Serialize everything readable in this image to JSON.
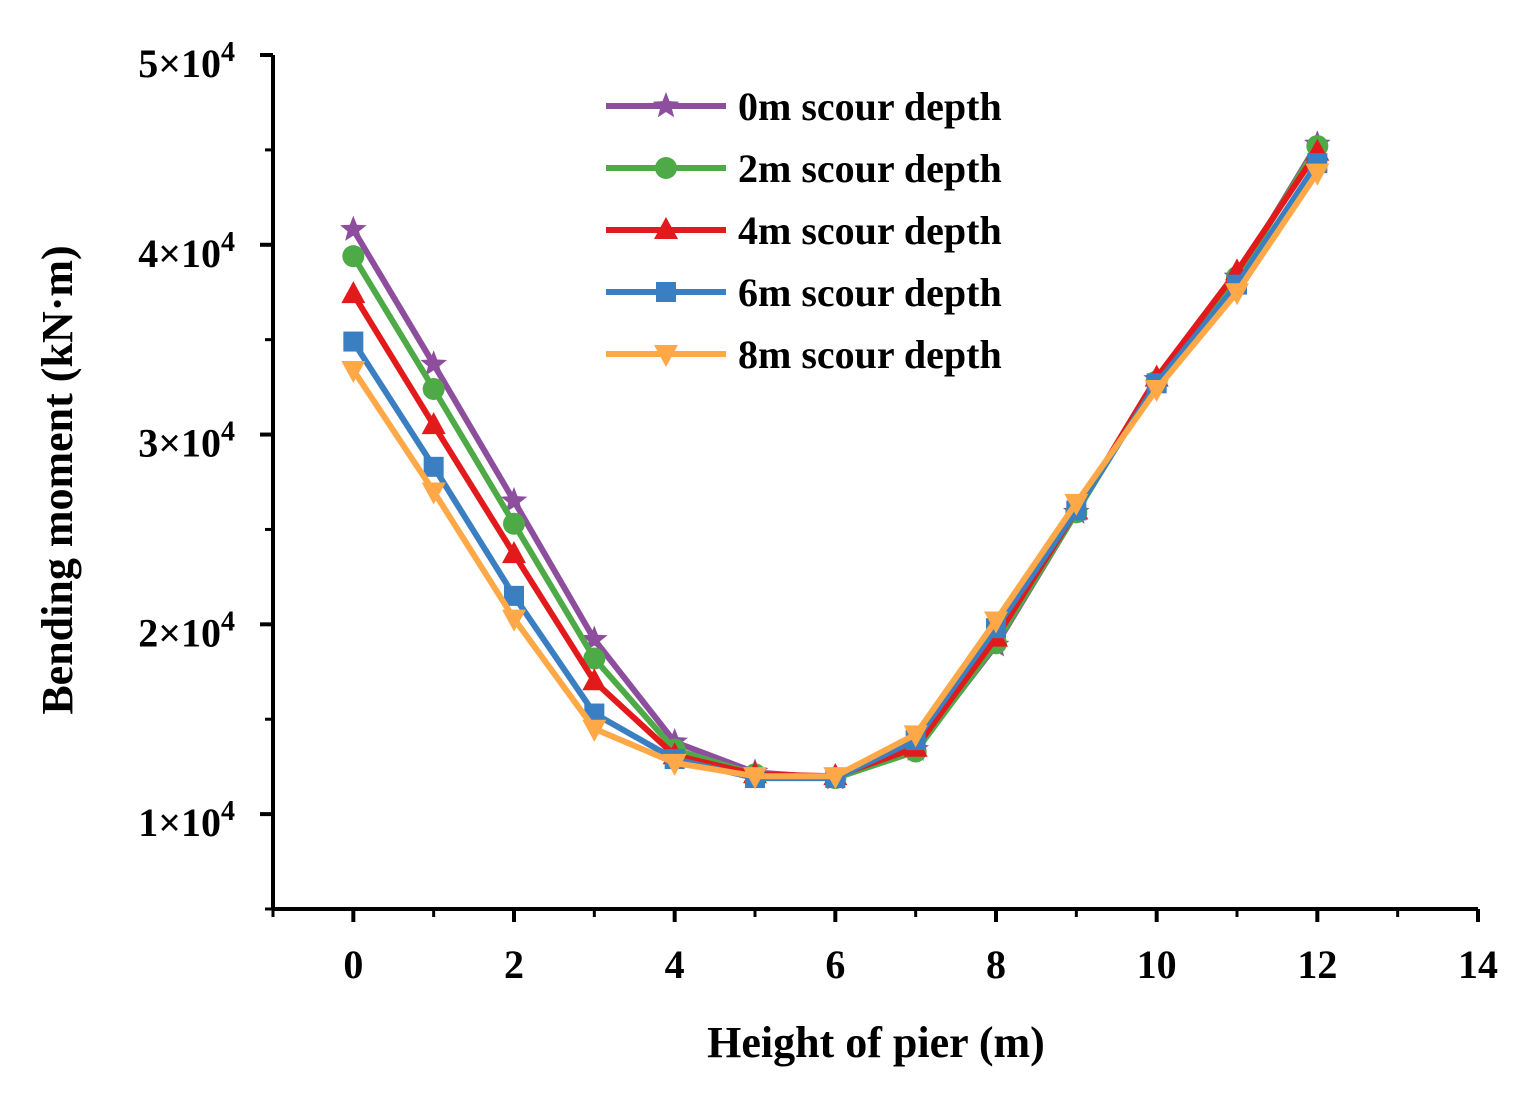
{
  "chart_data": {
    "type": "line",
    "title": "",
    "xlabel": "Height of pier (m)",
    "ylabel": "Bending moment (kN·m)",
    "xlim": [
      -1,
      14
    ],
    "ylim": [
      5000,
      50000
    ],
    "x_ticks": [
      0,
      2,
      4,
      6,
      8,
      10,
      12,
      14
    ],
    "x_tick_labels": [
      "0",
      "2",
      "4",
      "6",
      "8",
      "10",
      "12",
      "14"
    ],
    "y_ticks": [
      10000,
      20000,
      30000,
      40000,
      50000
    ],
    "y_tick_mantissas": [
      "1×10",
      "2×10",
      "3×10",
      "4×10",
      "5×10"
    ],
    "y_tick_exponent": "4",
    "grid": false,
    "legend_position": "top-center",
    "x": [
      0,
      1,
      2,
      3,
      4,
      5,
      6,
      7,
      8,
      9,
      10,
      11,
      12
    ],
    "series": [
      {
        "name": "0m scour depth",
        "color": "#8E4E9E",
        "marker": "star",
        "values": [
          40800,
          33700,
          26500,
          19200,
          13800,
          12200,
          11900,
          13400,
          18900,
          25900,
          32900,
          38300,
          45300
        ]
      },
      {
        "name": "2m scour depth",
        "color": "#4DAA47",
        "marker": "circle",
        "values": [
          39400,
          32400,
          25300,
          18200,
          13400,
          12100,
          11900,
          13300,
          19000,
          25900,
          32800,
          38300,
          45200
        ]
      },
      {
        "name": "4m scour depth",
        "color": "#E31A1C",
        "marker": "triangle-up",
        "values": [
          37400,
          30500,
          23700,
          17000,
          13100,
          12100,
          12000,
          13500,
          19300,
          26000,
          33000,
          38600,
          44900
        ]
      },
      {
        "name": "6m scour depth",
        "color": "#3A7FC1",
        "marker": "square",
        "values": [
          34900,
          28300,
          21500,
          15300,
          12900,
          11900,
          11900,
          13900,
          19800,
          26000,
          32700,
          37900,
          44300
        ]
      },
      {
        "name": "8m scour depth",
        "color": "#FFA848",
        "marker": "triangle-down",
        "values": [
          33400,
          27000,
          20300,
          14500,
          12700,
          12000,
          12000,
          14200,
          20200,
          26400,
          32400,
          37500,
          43800
        ]
      }
    ]
  }
}
